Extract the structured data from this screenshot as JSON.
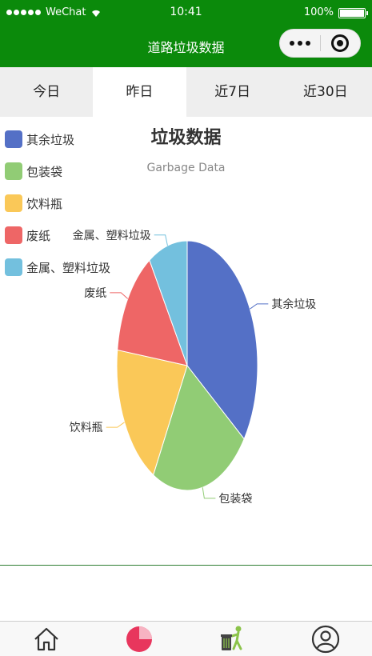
{
  "status_bar": {
    "carrier": "WeChat",
    "time": "10:41",
    "battery": "100%"
  },
  "nav": {
    "title": "道路垃圾数据"
  },
  "tabs": [
    {
      "label": "今日"
    },
    {
      "label": "昨日"
    },
    {
      "label": "近7日"
    },
    {
      "label": "近30日"
    }
  ],
  "active_tab": "昨日",
  "chart_data": {
    "type": "pie",
    "title": "垃圾数据",
    "subtitle": "Garbage Data",
    "legend_position": "top-left",
    "slices": [
      {
        "name": "其余垃圾",
        "value": 35,
        "color": "#5470c6"
      },
      {
        "name": "包装袋",
        "value": 23,
        "color": "#91cc75"
      },
      {
        "name": "饮料瓶",
        "value": 19,
        "color": "#fac858"
      },
      {
        "name": "废纸",
        "value": 14,
        "color": "#ee6666"
      },
      {
        "name": "金属、塑料垃圾",
        "value": 9,
        "color": "#73c0de"
      }
    ]
  },
  "bottom_tabs": [
    {
      "icon": "home-icon"
    },
    {
      "icon": "pie-chart-icon"
    },
    {
      "icon": "trash-person-icon"
    },
    {
      "icon": "user-icon"
    }
  ]
}
